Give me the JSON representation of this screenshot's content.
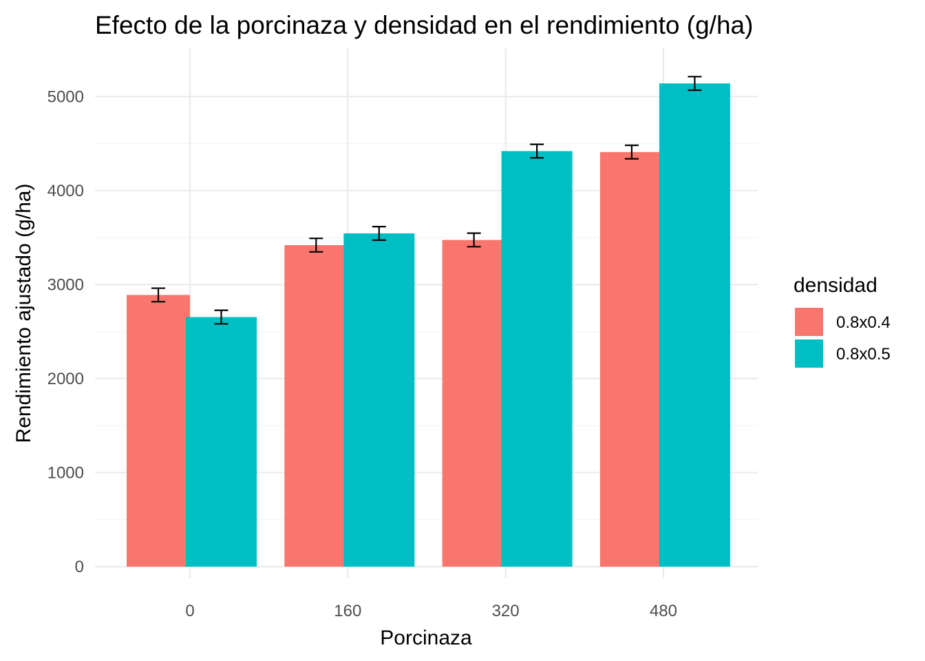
{
  "chart_data": {
    "type": "bar",
    "title": "Efecto de la porcinaza y densidad en el rendimiento (g/ha)",
    "xlabel": "Porcinaza",
    "ylabel": "Rendimiento ajustado (g/ha)",
    "categories": [
      "0",
      "160",
      "320",
      "480"
    ],
    "ylim": [
      0,
      5300
    ],
    "yticks": [
      0,
      1000,
      2000,
      3000,
      4000,
      5000
    ],
    "grid": true,
    "legend": {
      "title": "densidad",
      "position": "right"
    },
    "series": [
      {
        "name": "0.8x0.4",
        "color": "#F8766D",
        "values": [
          2890,
          3420,
          3475,
          4410
        ],
        "errors": [
          72,
          72,
          72,
          72
        ]
      },
      {
        "name": "0.8x0.5",
        "color": "#00BFC4",
        "values": [
          2655,
          3545,
          4420,
          5140
        ],
        "errors": [
          72,
          72,
          72,
          72
        ]
      }
    ]
  }
}
